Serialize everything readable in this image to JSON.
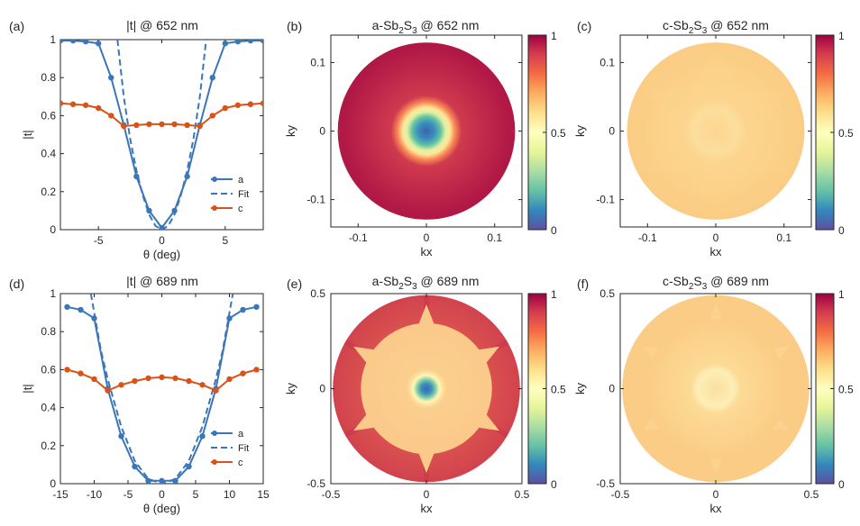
{
  "chart_data": [
    {
      "panel": "(a)",
      "type": "line",
      "title": "|t| @ 652 nm",
      "xlabel": "θ (deg)",
      "ylabel": "|t|",
      "xlim": [
        -8,
        8
      ],
      "ylim": [
        0,
        1
      ],
      "xticks": [
        -5,
        0,
        5
      ],
      "yticks": [
        0,
        0.2,
        0.4,
        0.6,
        0.8,
        1
      ],
      "legend": "bottom-right",
      "series": [
        {
          "name": "a",
          "style": "solid-marker",
          "color": "#3a76b8",
          "x": [
            -8,
            -7,
            -6,
            -5,
            -4,
            -3,
            -2,
            -1,
            0,
            1,
            2,
            3,
            4,
            5,
            6,
            7,
            8
          ],
          "y": [
            0.995,
            0.995,
            0.99,
            0.98,
            0.8,
            0.55,
            0.28,
            0.1,
            0.01,
            0.1,
            0.28,
            0.55,
            0.8,
            0.98,
            0.99,
            0.995,
            0.995
          ]
        },
        {
          "name": "Fit",
          "style": "dashed",
          "color": "#3a76b8",
          "x": [
            -3.5,
            -3,
            -2.5,
            -2,
            -1.5,
            -1,
            -0.5,
            0,
            0.5,
            1,
            1.5,
            2,
            2.5,
            3,
            3.5
          ],
          "y": [
            1.0,
            0.7,
            0.48,
            0.31,
            0.18,
            0.08,
            0.02,
            0.0,
            0.02,
            0.08,
            0.18,
            0.31,
            0.48,
            0.7,
            1.0
          ]
        },
        {
          "name": "c",
          "style": "solid-marker",
          "color": "#d95319",
          "x": [
            -8,
            -7,
            -6,
            -5,
            -4,
            -3,
            -2,
            -1,
            0,
            1,
            2,
            3,
            4,
            5,
            6,
            7,
            8
          ],
          "y": [
            0.665,
            0.66,
            0.655,
            0.64,
            0.6,
            0.545,
            0.55,
            0.555,
            0.555,
            0.555,
            0.55,
            0.545,
            0.6,
            0.64,
            0.655,
            0.66,
            0.665
          ]
        }
      ]
    },
    {
      "panel": "(b)",
      "type": "heatmap",
      "pattern": "center",
      "title_main": "a-Sb",
      "title_sub1": "2",
      "title_mid": "S",
      "title_sub2": "3",
      "title_end": " @ 652 nm",
      "xlabel": "kx",
      "ylabel": "ky",
      "xlim": [
        -0.14,
        0.14
      ],
      "ylim": [
        -0.14,
        0.14
      ],
      "xticks": [
        -0.1,
        0,
        0.1
      ],
      "yticks": [
        -0.1,
        0,
        0.1
      ],
      "radius": 0.13,
      "colorbar": {
        "min": 0,
        "max": 1,
        "ticks": [
          0,
          0.5,
          1
        ]
      }
    },
    {
      "panel": "(c)",
      "type": "heatmap",
      "pattern": "flat",
      "title_main": "c-Sb",
      "title_sub1": "2",
      "title_mid": "S",
      "title_sub2": "3",
      "title_end": " @ 652 nm",
      "xlabel": "kx",
      "ylabel": "ky",
      "xlim": [
        -0.14,
        0.14
      ],
      "ylim": [
        -0.14,
        0.14
      ],
      "xticks": [
        -0.1,
        0,
        0.1
      ],
      "yticks": [
        -0.1,
        0,
        0.1
      ],
      "radius": 0.13,
      "colorbar": {
        "min": 0,
        "max": 1,
        "ticks": [
          0,
          0.5,
          1
        ]
      }
    },
    {
      "panel": "(d)",
      "type": "line",
      "title": "|t| @ 689 nm",
      "xlabel": "θ (deg)",
      "ylabel": "|t|",
      "xlim": [
        -15,
        15
      ],
      "ylim": [
        0,
        1
      ],
      "xticks": [
        -15,
        -10,
        -5,
        0,
        5,
        10,
        15
      ],
      "yticks": [
        0,
        0.2,
        0.4,
        0.6,
        0.8,
        1
      ],
      "legend": "bottom-right",
      "series": [
        {
          "name": "a",
          "style": "solid-marker",
          "color": "#3a76b8",
          "x": [
            -14,
            -12,
            -10,
            -8,
            -6,
            -4,
            -2,
            0,
            2,
            4,
            6,
            8,
            10,
            12,
            14
          ],
          "y": [
            0.93,
            0.915,
            0.87,
            0.5,
            0.25,
            0.09,
            0.015,
            0.015,
            0.015,
            0.09,
            0.25,
            0.5,
            0.87,
            0.915,
            0.93
          ]
        },
        {
          "name": "Fit",
          "style": "dashed",
          "color": "#3a76b8",
          "x": [
            -10.5,
            -9,
            -8,
            -6,
            -4,
            -2,
            0,
            2,
            4,
            6,
            8,
            9,
            10.5
          ],
          "y": [
            1.0,
            0.7,
            0.55,
            0.3,
            0.12,
            0.025,
            0.0,
            0.025,
            0.12,
            0.3,
            0.55,
            0.7,
            1.0
          ]
        },
        {
          "name": "c",
          "style": "solid-marker",
          "color": "#d95319",
          "x": [
            -14,
            -12,
            -10,
            -8,
            -6,
            -4,
            -2,
            0,
            2,
            4,
            6,
            8,
            10,
            12,
            14
          ],
          "y": [
            0.6,
            0.58,
            0.55,
            0.49,
            0.52,
            0.54,
            0.555,
            0.56,
            0.555,
            0.54,
            0.52,
            0.49,
            0.55,
            0.58,
            0.6
          ]
        }
      ]
    },
    {
      "panel": "(e)",
      "type": "heatmap",
      "pattern": "star",
      "title_main": "a-Sb",
      "title_sub1": "2",
      "title_mid": "S",
      "title_sub2": "3",
      "title_end": " @ 689 nm",
      "xlabel": "kx",
      "ylabel": "ky",
      "xlim": [
        -0.5,
        0.5
      ],
      "ylim": [
        -0.5,
        0.5
      ],
      "xticks": [
        -0.5,
        0,
        0.5
      ],
      "yticks": [
        -0.5,
        0,
        0.5
      ],
      "radius": 0.49,
      "colorbar": {
        "min": 0,
        "max": 1,
        "ticks": [
          0,
          0.5,
          1
        ]
      }
    },
    {
      "panel": "(f)",
      "type": "heatmap",
      "pattern": "flatring",
      "title_main": "c-Sb",
      "title_sub1": "2",
      "title_mid": "S",
      "title_sub2": "3",
      "title_end": " @ 689 nm",
      "xlabel": "kx",
      "ylabel": "ky",
      "xlim": [
        -0.5,
        0.5
      ],
      "ylim": [
        -0.5,
        0.5
      ],
      "xticks": [
        -0.5,
        0,
        0.5
      ],
      "yticks": [
        -0.5,
        0,
        0.5
      ],
      "radius": 0.49,
      "colorbar": {
        "min": 0,
        "max": 1,
        "ticks": [
          0,
          0.5,
          1
        ]
      }
    }
  ]
}
